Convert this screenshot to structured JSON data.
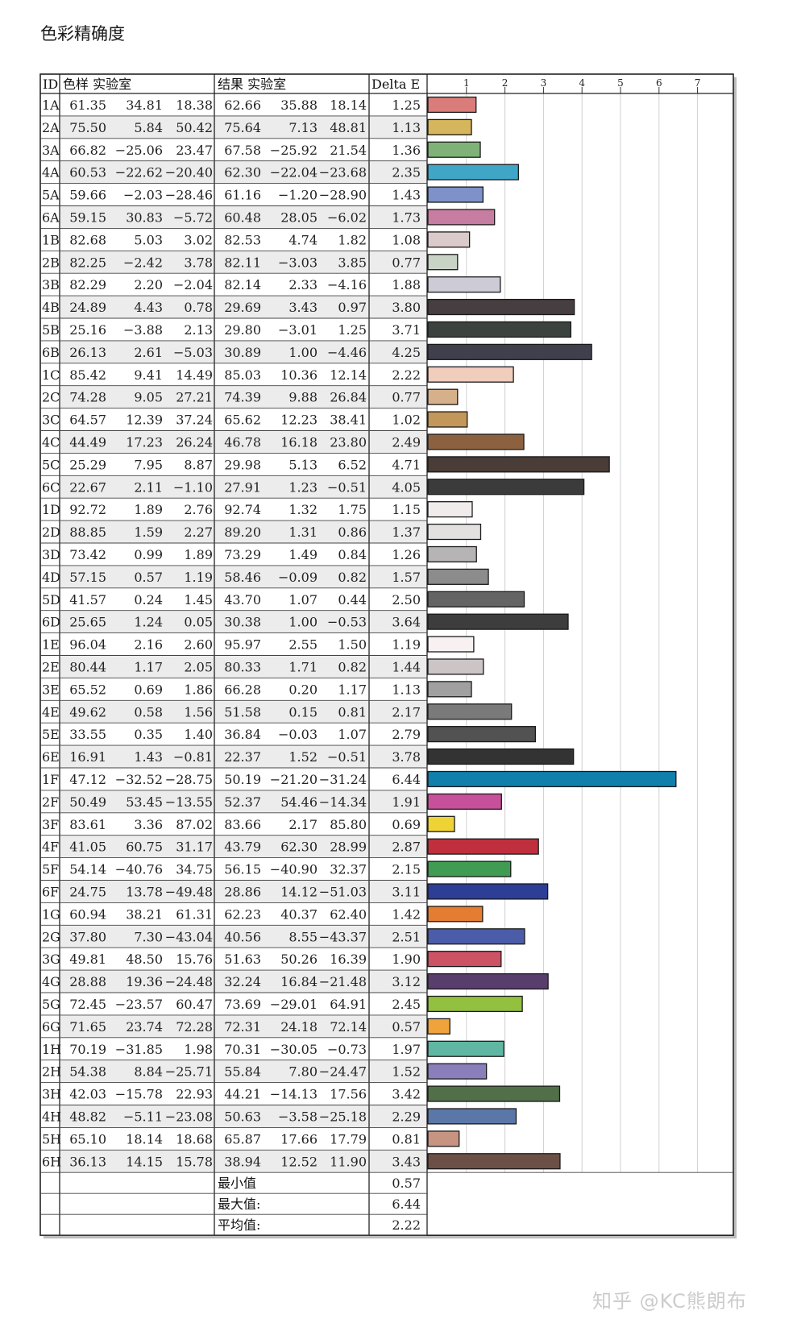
{
  "title": "色彩精确度",
  "watermark": "知乎 @KC熊朗布",
  "headers": {
    "id": "ID",
    "sample": "色样 实验室",
    "result": "结果 实验室",
    "delta": "Delta E"
  },
  "summary": [
    {
      "label": "最小值",
      "value": "0.57"
    },
    {
      "label": "最大值:",
      "value": "6.44"
    },
    {
      "label": "平均值:",
      "value": "2.22"
    }
  ],
  "rows": [
    {
      "id": "1A",
      "sample": [
        "61.35",
        "34.81",
        "18.38"
      ],
      "result": [
        "62.66",
        "35.88",
        "18.14"
      ],
      "delta": "1.25",
      "color": "#d97c7a"
    },
    {
      "id": "2A",
      "sample": [
        "75.50",
        "5.84",
        "50.42"
      ],
      "result": [
        "75.64",
        "7.13",
        "48.81"
      ],
      "delta": "1.13",
      "color": "#d6b65c"
    },
    {
      "id": "3A",
      "sample": [
        "66.82",
        "−25.06",
        "23.47"
      ],
      "result": [
        "67.58",
        "−25.92",
        "21.54"
      ],
      "delta": "1.36",
      "color": "#7fb277"
    },
    {
      "id": "4A",
      "sample": [
        "60.53",
        "−22.62",
        "−20.40"
      ],
      "result": [
        "62.30",
        "−22.04",
        "−23.68"
      ],
      "delta": "2.35",
      "color": "#3fa6c8"
    },
    {
      "id": "5A",
      "sample": [
        "59.66",
        "−2.03",
        "−28.46"
      ],
      "result": [
        "61.16",
        "−1.20",
        "−28.90"
      ],
      "delta": "1.43",
      "color": "#7e91c9"
    },
    {
      "id": "6A",
      "sample": [
        "59.15",
        "30.83",
        "−5.72"
      ],
      "result": [
        "60.48",
        "28.05",
        "−6.02"
      ],
      "delta": "1.73",
      "color": "#c77ca2"
    },
    {
      "id": "1B",
      "sample": [
        "82.68",
        "5.03",
        "3.02"
      ],
      "result": [
        "82.53",
        "4.74",
        "1.82"
      ],
      "delta": "1.08",
      "color": "#dbcaca"
    },
    {
      "id": "2B",
      "sample": [
        "82.25",
        "−2.42",
        "3.78"
      ],
      "result": [
        "82.11",
        "−3.03",
        "3.85"
      ],
      "delta": "0.77",
      "color": "#c8d2c5"
    },
    {
      "id": "3B",
      "sample": [
        "82.29",
        "2.20",
        "−2.04"
      ],
      "result": [
        "82.14",
        "2.33",
        "−4.16"
      ],
      "delta": "1.88",
      "color": "#cccbd6"
    },
    {
      "id": "4B",
      "sample": [
        "24.89",
        "4.43",
        "0.78"
      ],
      "result": [
        "29.69",
        "3.43",
        "0.97"
      ],
      "delta": "3.80",
      "color": "#463e40"
    },
    {
      "id": "5B",
      "sample": [
        "25.16",
        "−3.88",
        "2.13"
      ],
      "result": [
        "29.80",
        "−3.01",
        "1.25"
      ],
      "delta": "3.71",
      "color": "#3c423d"
    },
    {
      "id": "6B",
      "sample": [
        "26.13",
        "2.61",
        "−5.03"
      ],
      "result": [
        "30.89",
        "1.00",
        "−4.46"
      ],
      "delta": "4.25",
      "color": "#40404d"
    },
    {
      "id": "1C",
      "sample": [
        "85.42",
        "9.41",
        "14.49"
      ],
      "result": [
        "85.03",
        "10.36",
        "12.14"
      ],
      "delta": "2.22",
      "color": "#f1cdbd"
    },
    {
      "id": "2C",
      "sample": [
        "74.28",
        "9.05",
        "27.21"
      ],
      "result": [
        "74.39",
        "9.88",
        "26.84"
      ],
      "delta": "0.77",
      "color": "#d6b08a"
    },
    {
      "id": "3C",
      "sample": [
        "64.57",
        "12.39",
        "37.24"
      ],
      "result": [
        "65.62",
        "12.23",
        "38.41"
      ],
      "delta": "1.02",
      "color": "#c39759"
    },
    {
      "id": "4C",
      "sample": [
        "44.49",
        "17.23",
        "26.24"
      ],
      "result": [
        "46.78",
        "16.18",
        "23.80"
      ],
      "delta": "2.49",
      "color": "#8c6140"
    },
    {
      "id": "5C",
      "sample": [
        "25.29",
        "7.95",
        "8.87"
      ],
      "result": [
        "29.98",
        "5.13",
        "6.52"
      ],
      "delta": "4.71",
      "color": "#4a3c36"
    },
    {
      "id": "6C",
      "sample": [
        "22.67",
        "2.11",
        "−1.10"
      ],
      "result": [
        "27.91",
        "1.23",
        "−0.51"
      ],
      "delta": "4.05",
      "color": "#3b3b3b"
    },
    {
      "id": "1D",
      "sample": [
        "92.72",
        "1.89",
        "2.76"
      ],
      "result": [
        "92.74",
        "1.32",
        "1.75"
      ],
      "delta": "1.15",
      "color": "#f1ecec"
    },
    {
      "id": "2D",
      "sample": [
        "88.85",
        "1.59",
        "2.27"
      ],
      "result": [
        "89.20",
        "1.31",
        "0.86"
      ],
      "delta": "1.37",
      "color": "#e3e0e0"
    },
    {
      "id": "3D",
      "sample": [
        "73.42",
        "0.99",
        "1.89"
      ],
      "result": [
        "73.29",
        "1.49",
        "0.84"
      ],
      "delta": "1.26",
      "color": "#b6b4b4"
    },
    {
      "id": "4D",
      "sample": [
        "57.15",
        "0.57",
        "1.19"
      ],
      "result": [
        "58.46",
        "−0.09",
        "0.82"
      ],
      "delta": "1.57",
      "color": "#8c8c8c"
    },
    {
      "id": "5D",
      "sample": [
        "41.57",
        "0.24",
        "1.45"
      ],
      "result": [
        "43.70",
        "1.07",
        "0.44"
      ],
      "delta": "2.50",
      "color": "#646464"
    },
    {
      "id": "6D",
      "sample": [
        "25.65",
        "1.24",
        "0.05"
      ],
      "result": [
        "30.38",
        "1.00",
        "−0.53"
      ],
      "delta": "3.64",
      "color": "#3d3d3d"
    },
    {
      "id": "1E",
      "sample": [
        "96.04",
        "2.16",
        "2.60"
      ],
      "result": [
        "95.97",
        "2.55",
        "1.50"
      ],
      "delta": "1.19",
      "color": "#f8f1f1"
    },
    {
      "id": "2E",
      "sample": [
        "80.44",
        "1.17",
        "2.05"
      ],
      "result": [
        "80.33",
        "1.71",
        "0.82"
      ],
      "delta": "1.44",
      "color": "#cbc5c5"
    },
    {
      "id": "3E",
      "sample": [
        "65.52",
        "0.69",
        "1.86"
      ],
      "result": [
        "66.28",
        "0.20",
        "1.17"
      ],
      "delta": "1.13",
      "color": "#a0a0a0"
    },
    {
      "id": "4E",
      "sample": [
        "49.62",
        "0.58",
        "1.56"
      ],
      "result": [
        "51.58",
        "0.15",
        "0.81"
      ],
      "delta": "2.17",
      "color": "#7a7a7a"
    },
    {
      "id": "5E",
      "sample": [
        "33.55",
        "0.35",
        "1.40"
      ],
      "result": [
        "36.84",
        "−0.03",
        "1.07"
      ],
      "delta": "2.79",
      "color": "#525252"
    },
    {
      "id": "6E",
      "sample": [
        "16.91",
        "1.43",
        "−0.81"
      ],
      "result": [
        "22.37",
        "1.52",
        "−0.51"
      ],
      "delta": "3.78",
      "color": "#333333"
    },
    {
      "id": "1F",
      "sample": [
        "47.12",
        "−32.52",
        "−28.75"
      ],
      "result": [
        "50.19",
        "−21.20",
        "−31.24"
      ],
      "delta": "6.44",
      "color": "#0f7fac"
    },
    {
      "id": "2F",
      "sample": [
        "50.49",
        "53.45",
        "−13.55"
      ],
      "result": [
        "52.37",
        "54.46",
        "−14.34"
      ],
      "delta": "1.91",
      "color": "#c8509a"
    },
    {
      "id": "3F",
      "sample": [
        "83.61",
        "3.36",
        "87.02"
      ],
      "result": [
        "83.66",
        "2.17",
        "85.80"
      ],
      "delta": "0.69",
      "color": "#efd334"
    },
    {
      "id": "4F",
      "sample": [
        "41.05",
        "60.75",
        "31.17"
      ],
      "result": [
        "43.79",
        "62.30",
        "28.99"
      ],
      "delta": "2.87",
      "color": "#bf2f3d"
    },
    {
      "id": "5F",
      "sample": [
        "54.14",
        "−40.76",
        "34.75"
      ],
      "result": [
        "56.15",
        "−40.90",
        "32.37"
      ],
      "delta": "2.15",
      "color": "#3f9c52"
    },
    {
      "id": "6F",
      "sample": [
        "24.75",
        "13.78",
        "−49.48"
      ],
      "result": [
        "28.86",
        "14.12",
        "−51.03"
      ],
      "delta": "3.11",
      "color": "#2d3e96"
    },
    {
      "id": "1G",
      "sample": [
        "60.94",
        "38.21",
        "61.31"
      ],
      "result": [
        "62.23",
        "40.37",
        "62.40"
      ],
      "delta": "1.42",
      "color": "#e47c32"
    },
    {
      "id": "2G",
      "sample": [
        "37.80",
        "7.30",
        "−43.04"
      ],
      "result": [
        "40.56",
        "8.55",
        "−43.37"
      ],
      "delta": "2.51",
      "color": "#4b5ca8"
    },
    {
      "id": "3G",
      "sample": [
        "49.81",
        "48.50",
        "15.76"
      ],
      "result": [
        "51.63",
        "50.26",
        "16.39"
      ],
      "delta": "1.90",
      "color": "#cd5264"
    },
    {
      "id": "4G",
      "sample": [
        "28.88",
        "19.36",
        "−24.48"
      ],
      "result": [
        "32.24",
        "16.84",
        "−21.48"
      ],
      "delta": "3.12",
      "color": "#583e6c"
    },
    {
      "id": "5G",
      "sample": [
        "72.45",
        "−23.57",
        "60.47"
      ],
      "result": [
        "73.69",
        "−29.01",
        "64.91"
      ],
      "delta": "2.45",
      "color": "#93c03f"
    },
    {
      "id": "6G",
      "sample": [
        "71.65",
        "23.74",
        "72.28"
      ],
      "result": [
        "72.31",
        "24.18",
        "72.14"
      ],
      "delta": "0.57",
      "color": "#efa33a"
    },
    {
      "id": "1H",
      "sample": [
        "70.19",
        "−31.85",
        "1.98"
      ],
      "result": [
        "70.31",
        "−30.05",
        "−0.73"
      ],
      "delta": "1.97",
      "color": "#5fb7a3"
    },
    {
      "id": "2H",
      "sample": [
        "54.38",
        "8.84",
        "−25.71"
      ],
      "result": [
        "55.84",
        "7.80",
        "−24.47"
      ],
      "delta": "1.52",
      "color": "#8a7fba"
    },
    {
      "id": "3H",
      "sample": [
        "42.03",
        "−15.78",
        "22.93"
      ],
      "result": [
        "44.21",
        "−14.13",
        "17.56"
      ],
      "delta": "3.42",
      "color": "#51704a"
    },
    {
      "id": "4H",
      "sample": [
        "48.82",
        "−5.11",
        "−23.08"
      ],
      "result": [
        "50.63",
        "−3.58",
        "−25.18"
      ],
      "delta": "2.29",
      "color": "#5a77a8"
    },
    {
      "id": "5H",
      "sample": [
        "65.10",
        "18.14",
        "18.68"
      ],
      "result": [
        "65.87",
        "17.66",
        "17.79"
      ],
      "delta": "0.81",
      "color": "#c89482"
    },
    {
      "id": "6H",
      "sample": [
        "36.13",
        "14.15",
        "15.78"
      ],
      "result": [
        "38.94",
        "12.52",
        "11.90"
      ],
      "delta": "3.43",
      "color": "#6c5046"
    }
  ],
  "chart_data": {
    "type": "bar",
    "orientation": "horizontal",
    "categories": [
      "1A",
      "2A",
      "3A",
      "4A",
      "5A",
      "6A",
      "1B",
      "2B",
      "3B",
      "4B",
      "5B",
      "6B",
      "1C",
      "2C",
      "3C",
      "4C",
      "5C",
      "6C",
      "1D",
      "2D",
      "3D",
      "4D",
      "5D",
      "6D",
      "1E",
      "2E",
      "3E",
      "4E",
      "5E",
      "6E",
      "1F",
      "2F",
      "3F",
      "4F",
      "5F",
      "6F",
      "1G",
      "2G",
      "3G",
      "4G",
      "5G",
      "6G",
      "1H",
      "2H",
      "3H",
      "4H",
      "5H",
      "6H"
    ],
    "values": [
      1.25,
      1.13,
      1.36,
      2.35,
      1.43,
      1.73,
      1.08,
      0.77,
      1.88,
      3.8,
      3.71,
      4.25,
      2.22,
      0.77,
      1.02,
      2.49,
      4.71,
      4.05,
      1.15,
      1.37,
      1.26,
      1.57,
      2.5,
      3.64,
      1.19,
      1.44,
      1.13,
      2.17,
      2.79,
      3.78,
      6.44,
      1.91,
      0.69,
      2.87,
      2.15,
      3.11,
      1.42,
      2.51,
      1.9,
      3.12,
      2.45,
      0.57,
      1.97,
      1.52,
      3.42,
      2.29,
      0.81,
      3.43
    ],
    "xticks": [
      "1",
      "2",
      "3",
      "4",
      "5",
      "6",
      "7"
    ],
    "xlim": [
      0,
      8
    ],
    "grid": true,
    "xlabel": "",
    "ylabel": ""
  }
}
